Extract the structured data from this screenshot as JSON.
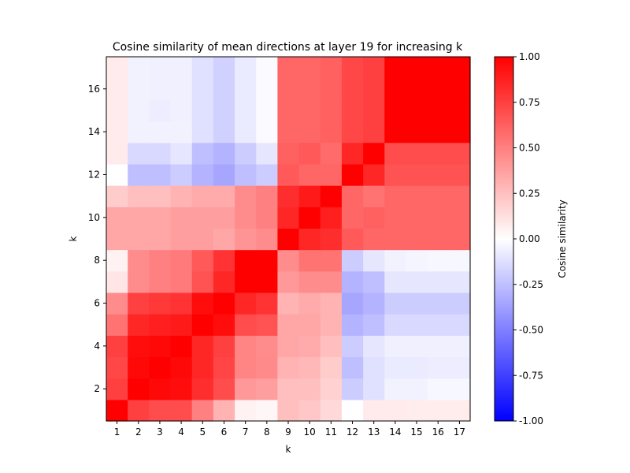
{
  "chart_data": {
    "type": "heatmap",
    "title": "Cosine similarity of mean directions at layer 19 for increasing k",
    "xlabel": "k",
    "ylabel": "k",
    "x_categories": [
      1,
      2,
      3,
      4,
      5,
      6,
      7,
      8,
      9,
      10,
      11,
      12,
      13,
      14,
      15,
      16,
      17
    ],
    "y_categories": [
      1,
      2,
      3,
      4,
      5,
      6,
      7,
      8,
      9,
      10,
      11,
      12,
      13,
      14,
      15,
      16,
      17
    ],
    "y_ticks": [
      2,
      4,
      6,
      8,
      10,
      12,
      14,
      16
    ],
    "colormap": "bwr",
    "colormap_colors": {
      "low": "#0000ff",
      "mid": "#ffffff",
      "high": "#ff0000"
    },
    "vmin": -1.0,
    "vmax": 1.0,
    "colorbar": {
      "label": "Cosine similarity",
      "ticks": [
        "1.00",
        "0.75",
        "0.50",
        "0.25",
        "0.00",
        "-0.25",
        "-0.50",
        "-0.75",
        "-1.00"
      ],
      "tick_values": [
        1.0,
        0.75,
        0.5,
        0.25,
        0.0,
        -0.25,
        -0.5,
        -0.75,
        -1.0
      ]
    },
    "values": [
      [
        1.0,
        0.75,
        0.7,
        0.7,
        0.5,
        0.3,
        0.05,
        0.03,
        0.25,
        0.22,
        0.15,
        0.0,
        0.08,
        0.08,
        0.07,
        0.07,
        0.07
      ],
      [
        0.75,
        1.0,
        0.97,
        0.95,
        0.82,
        0.7,
        0.4,
        0.38,
        0.25,
        0.25,
        0.18,
        -0.2,
        -0.12,
        -0.05,
        -0.05,
        -0.03,
        -0.03
      ],
      [
        0.72,
        0.97,
        1.0,
        0.97,
        0.85,
        0.73,
        0.48,
        0.46,
        0.3,
        0.28,
        0.2,
        -0.25,
        -0.12,
        -0.08,
        -0.08,
        -0.07,
        -0.07
      ],
      [
        0.75,
        0.95,
        0.97,
        1.0,
        0.85,
        0.75,
        0.48,
        0.45,
        0.35,
        0.33,
        0.25,
        -0.2,
        -0.1,
        -0.06,
        -0.06,
        -0.06,
        -0.06
      ],
      [
        0.55,
        0.85,
        0.88,
        0.9,
        1.0,
        0.95,
        0.7,
        0.68,
        0.35,
        0.35,
        0.3,
        -0.3,
        -0.25,
        -0.15,
        -0.15,
        -0.15,
        -0.15
      ],
      [
        0.45,
        0.75,
        0.78,
        0.8,
        0.95,
        1.0,
        0.85,
        0.8,
        0.3,
        0.33,
        0.3,
        -0.35,
        -0.3,
        -0.2,
        -0.2,
        -0.2,
        -0.2
      ],
      [
        0.1,
        0.45,
        0.5,
        0.52,
        0.68,
        0.85,
        1.0,
        1.0,
        0.4,
        0.45,
        0.45,
        -0.3,
        -0.25,
        -0.1,
        -0.1,
        -0.1,
        -0.1
      ],
      [
        0.05,
        0.45,
        0.5,
        0.52,
        0.65,
        0.8,
        1.0,
        1.0,
        0.45,
        0.55,
        0.55,
        -0.2,
        -0.1,
        -0.05,
        -0.04,
        -0.03,
        -0.03
      ],
      [
        0.35,
        0.35,
        0.35,
        0.38,
        0.38,
        0.35,
        0.42,
        0.45,
        1.0,
        0.85,
        0.82,
        0.65,
        0.6,
        0.6,
        0.6,
        0.6,
        0.6
      ],
      [
        0.35,
        0.35,
        0.35,
        0.38,
        0.38,
        0.38,
        0.45,
        0.5,
        0.85,
        1.0,
        0.88,
        0.6,
        0.62,
        0.6,
        0.6,
        0.6,
        0.6
      ],
      [
        0.2,
        0.25,
        0.25,
        0.3,
        0.33,
        0.33,
        0.45,
        0.5,
        0.82,
        0.9,
        1.0,
        0.6,
        0.55,
        0.6,
        0.6,
        0.6,
        0.6
      ],
      [
        0.0,
        -0.25,
        -0.25,
        -0.2,
        -0.3,
        -0.35,
        -0.25,
        -0.2,
        0.65,
        0.6,
        0.6,
        1.0,
        0.85,
        0.68,
        0.68,
        0.68,
        0.68
      ],
      [
        0.08,
        -0.15,
        -0.15,
        -0.1,
        -0.25,
        -0.3,
        -0.2,
        -0.1,
        0.62,
        0.65,
        0.58,
        0.85,
        1.0,
        0.7,
        0.7,
        0.7,
        0.7
      ],
      [
        0.08,
        -0.05,
        -0.05,
        -0.05,
        -0.12,
        -0.18,
        -0.08,
        -0.02,
        0.6,
        0.6,
        0.62,
        0.72,
        0.75,
        1.0,
        1.0,
        1.0,
        1.0
      ],
      [
        0.08,
        -0.05,
        -0.07,
        -0.06,
        -0.12,
        -0.18,
        -0.08,
        -0.02,
        0.6,
        0.6,
        0.62,
        0.72,
        0.75,
        1.0,
        1.0,
        1.0,
        1.0
      ],
      [
        0.08,
        -0.05,
        -0.06,
        -0.06,
        -0.12,
        -0.18,
        -0.08,
        -0.02,
        0.6,
        0.6,
        0.62,
        0.72,
        0.75,
        1.0,
        1.0,
        1.0,
        1.0
      ],
      [
        0.08,
        -0.05,
        -0.06,
        -0.06,
        -0.12,
        -0.18,
        -0.08,
        -0.02,
        0.6,
        0.6,
        0.62,
        0.72,
        0.75,
        1.0,
        1.0,
        1.0,
        1.0
      ]
    ]
  }
}
